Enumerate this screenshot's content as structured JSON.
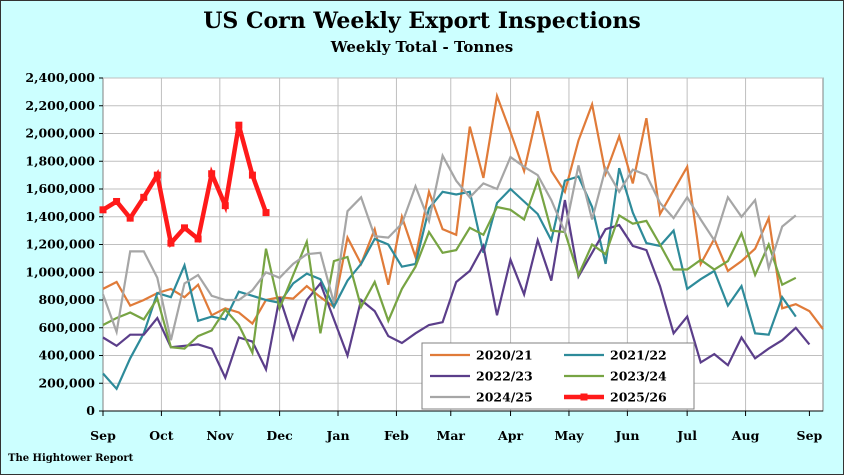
{
  "header": {
    "title": "US Corn Weekly Export Inspections",
    "subtitle": "Weekly Total - Tonnes"
  },
  "footer": {
    "source": "The Hightower Report"
  },
  "colors": {
    "background": "#ccffff",
    "plot_area": "#ffffff",
    "grid": "#bfbfbf"
  },
  "chart_data": {
    "type": "line",
    "title": "US Corn Weekly Export Inspections",
    "subtitle": "Weekly Total - Tonnes",
    "xlabel": "",
    "ylabel": "",
    "ylim": [
      0,
      2400000
    ],
    "yticks": [
      0,
      200000,
      400000,
      600000,
      800000,
      1000000,
      1200000,
      1400000,
      1600000,
      1800000,
      2000000,
      2200000,
      2400000
    ],
    "ytick_labels": [
      "0",
      "200,000",
      "400,000",
      "600,000",
      "800,000",
      "1,000,000",
      "1,200,000",
      "1,400,000",
      "1,600,000",
      "1,800,000",
      "2,000,000",
      "2,200,000",
      "2,400,000"
    ],
    "xlim": [
      0,
      53
    ],
    "x_axis_unit": "week of marketing year (September start)",
    "xticks": [
      0,
      4.3,
      8.6,
      13,
      17.3,
      21.6,
      25.6,
      30,
      34.3,
      38.6,
      43,
      47.3,
      52
    ],
    "xtick_labels": [
      "Sep",
      "Oct",
      "Nov",
      "Dec",
      "Jan",
      "Feb",
      "Mar",
      "Apr",
      "May",
      "Jun",
      "Jul",
      "Aug",
      "Sep"
    ],
    "grid": true,
    "legend_position": "bottom-right",
    "series": [
      {
        "name": "2020/21",
        "color": "#e07b39",
        "width": 2.2,
        "values": [
          880000,
          930000,
          760000,
          800000,
          850000,
          880000,
          820000,
          910000,
          690000,
          740000,
          710000,
          630000,
          800000,
          820000,
          810000,
          900000,
          820000,
          750000,
          1250000,
          1060000,
          1310000,
          910000,
          1400000,
          1110000,
          1580000,
          1310000,
          1270000,
          2050000,
          1680000,
          2270000,
          2010000,
          1730000,
          2160000,
          1730000,
          1580000,
          1950000,
          2210000,
          1710000,
          1980000,
          1640000,
          2110000,
          1420000,
          1590000,
          1760000,
          1060000,
          1240000,
          1010000,
          1080000,
          1170000,
          1390000,
          740000,
          770000,
          720000,
          590000
        ]
      },
      {
        "name": "2021/22",
        "color": "#2e8b9a",
        "width": 2.2,
        "values": [
          270000,
          160000,
          380000,
          560000,
          850000,
          820000,
          1050000,
          650000,
          680000,
          660000,
          860000,
          830000,
          800000,
          780000,
          920000,
          990000,
          950000,
          750000,
          940000,
          1060000,
          1240000,
          1200000,
          1040000,
          1060000,
          1460000,
          1580000,
          1560000,
          1580000,
          1140000,
          1500000,
          1600000,
          1510000,
          1420000,
          1230000,
          1660000,
          1690000,
          1470000,
          1060000,
          1750000,
          1430000,
          1210000,
          1190000,
          1300000,
          880000,
          950000,
          1010000,
          760000,
          900000,
          560000,
          550000,
          820000,
          680000
        ]
      },
      {
        "name": "2022/23",
        "color": "#5b3e8a",
        "width": 2.2,
        "values": [
          530000,
          470000,
          550000,
          550000,
          670000,
          460000,
          470000,
          480000,
          450000,
          240000,
          530000,
          500000,
          300000,
          820000,
          520000,
          800000,
          920000,
          660000,
          400000,
          800000,
          720000,
          540000,
          490000,
          560000,
          620000,
          640000,
          930000,
          1010000,
          1190000,
          690000,
          1090000,
          840000,
          1230000,
          940000,
          1520000,
          970000,
          1140000,
          1310000,
          1340000,
          1190000,
          1160000,
          900000,
          560000,
          680000,
          350000,
          410000,
          330000,
          530000,
          380000,
          450000,
          510000,
          600000,
          480000
        ]
      },
      {
        "name": "2023/24",
        "color": "#77a443",
        "width": 2.2,
        "values": [
          620000,
          670000,
          710000,
          660000,
          810000,
          460000,
          450000,
          540000,
          580000,
          730000,
          620000,
          420000,
          1170000,
          740000,
          980000,
          1220000,
          560000,
          1080000,
          1110000,
          750000,
          930000,
          650000,
          880000,
          1040000,
          1290000,
          1140000,
          1160000,
          1320000,
          1270000,
          1470000,
          1450000,
          1380000,
          1660000,
          1300000,
          1290000,
          980000,
          1200000,
          1130000,
          1410000,
          1350000,
          1370000,
          1200000,
          1020000,
          1020000,
          1090000,
          1020000,
          1080000,
          1280000,
          980000,
          1200000,
          910000,
          960000
        ]
      },
      {
        "name": "2024/25",
        "color": "#a6a6a6",
        "width": 2.2,
        "values": [
          840000,
          570000,
          1150000,
          1150000,
          960000,
          510000,
          920000,
          980000,
          830000,
          800000,
          800000,
          870000,
          1000000,
          960000,
          1060000,
          1130000,
          1140000,
          780000,
          1440000,
          1540000,
          1260000,
          1250000,
          1350000,
          1620000,
          1370000,
          1840000,
          1660000,
          1540000,
          1640000,
          1600000,
          1830000,
          1760000,
          1700000,
          1520000,
          1290000,
          1770000,
          1380000,
          1750000,
          1580000,
          1740000,
          1700000,
          1500000,
          1390000,
          1540000,
          1380000,
          1230000,
          1540000,
          1400000,
          1520000,
          1030000,
          1330000,
          1410000
        ]
      },
      {
        "name": "2025/26",
        "color": "#ff1a1a",
        "width": 4.5,
        "values": [
          1450000,
          1510000,
          1390000,
          1540000,
          1700000,
          1210000,
          1320000,
          1240000,
          1710000,
          1480000,
          2060000,
          1700000,
          1430000
        ]
      }
    ]
  }
}
